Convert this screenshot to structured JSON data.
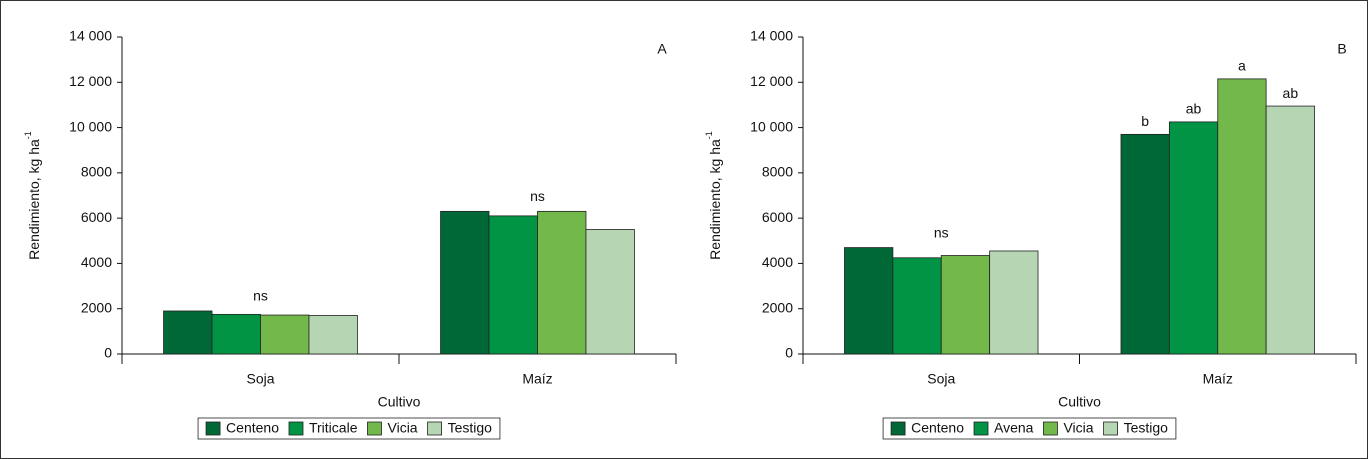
{
  "chart_data": [
    {
      "type": "bar",
      "panel": "A",
      "xlabel": "Cultivo",
      "ylabel": "Rendimiento, kg ha",
      "ylabel_sup": "-1",
      "categories": [
        "Soja",
        "Maíz"
      ],
      "series": [
        {
          "name": "Centeno",
          "color": "#006837",
          "values": [
            1900,
            6300
          ]
        },
        {
          "name": "Triticale",
          "color": "#009444",
          "values": [
            1750,
            6100
          ]
        },
        {
          "name": "Vicia",
          "color": "#72b84a",
          "values": [
            1720,
            6300
          ]
        },
        {
          "name": "Testigo",
          "color": "#b6d5b2",
          "values": [
            1700,
            5500
          ]
        }
      ],
      "group_labels": [
        "ns",
        "ns"
      ],
      "ylim": [
        0,
        14000
      ],
      "yticks": [
        0,
        2000,
        4000,
        6000,
        8000,
        {
          "value": 10000,
          "label": "10 000"
        },
        {
          "value": 12000,
          "label": "12 000"
        },
        {
          "value": 14000,
          "label": "14 000"
        }
      ]
    },
    {
      "type": "bar",
      "panel": "B",
      "xlabel": "Cultivo",
      "ylabel": "Rendimiento, kg ha",
      "ylabel_sup": "-1",
      "categories": [
        "Soja",
        "Maíz"
      ],
      "series": [
        {
          "name": "Centeno",
          "color": "#006837",
          "values": [
            4700,
            9700
          ],
          "labels": [
            null,
            "b"
          ]
        },
        {
          "name": "Avena",
          "color": "#009444",
          "values": [
            4250,
            10250
          ],
          "labels": [
            null,
            "ab"
          ]
        },
        {
          "name": "Vicia",
          "color": "#72b84a",
          "values": [
            4350,
            12150
          ],
          "labels": [
            null,
            "a"
          ]
        },
        {
          "name": "Testigo",
          "color": "#b6d5b2",
          "values": [
            4550,
            10950
          ],
          "labels": [
            null,
            "ab"
          ]
        }
      ],
      "group_labels": [
        "ns",
        null
      ],
      "ylim": [
        0,
        14000
      ],
      "yticks": [
        0,
        2000,
        4000,
        6000,
        8000,
        {
          "value": 10000,
          "label": "10 000"
        },
        {
          "value": 12000,
          "label": "12 000"
        },
        {
          "value": 14000,
          "label": "14 000"
        }
      ]
    }
  ]
}
